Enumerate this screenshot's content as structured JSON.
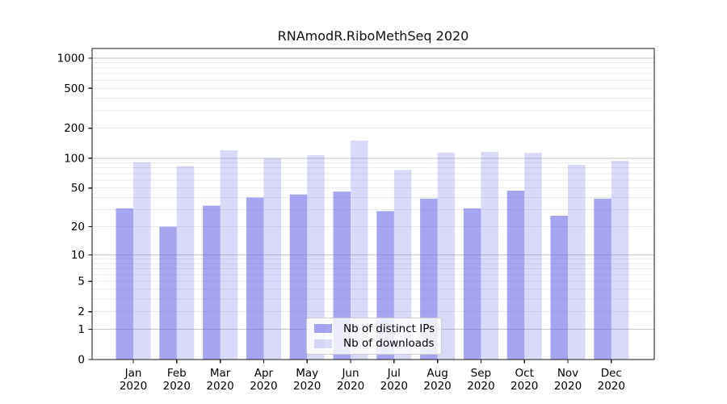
{
  "chart_data": {
    "type": "bar",
    "title": "RNAmodR.RiboMethSeq 2020",
    "year": "2020",
    "months": [
      "Jan",
      "Feb",
      "Mar",
      "Apr",
      "May",
      "Jun",
      "Jul",
      "Aug",
      "Sep",
      "Oct",
      "Nov",
      "Dec"
    ],
    "categories": [
      "Jan 2020",
      "Feb 2020",
      "Mar 2020",
      "Apr 2020",
      "May 2020",
      "Jun 2020",
      "Jul 2020",
      "Aug 2020",
      "Sep 2020",
      "Oct 2020",
      "Nov 2020",
      "Dec 2020"
    ],
    "series": [
      {
        "name": "Nb of distinct IPs",
        "values": [
          31,
          20,
          33,
          40,
          43,
          46,
          29,
          39,
          31,
          47,
          26,
          39
        ],
        "fill": "rgba(105,105,231,0.6)",
        "rendered_hex": "#a5a5f0"
      },
      {
        "name": "Nb of downloads",
        "values": [
          91,
          83,
          120,
          100,
          107,
          150,
          76,
          114,
          116,
          113,
          86,
          94
        ],
        "fill": "rgba(105,105,231,0.25)",
        "rendered_hex": "#d9d9f9"
      }
    ],
    "yscale": "log1p",
    "y_ticks": [
      1000,
      500,
      200,
      100,
      50,
      20,
      10,
      5,
      2,
      1,
      0
    ],
    "ylim": [
      0,
      1250
    ],
    "grid": true,
    "legend_position": "lower center",
    "colors": {
      "grid_major": "#c6c6c6",
      "grid_minor": "#ebebeb",
      "spine": "#1a1a1a",
      "text": "#000000",
      "background": "#ffffff"
    }
  }
}
